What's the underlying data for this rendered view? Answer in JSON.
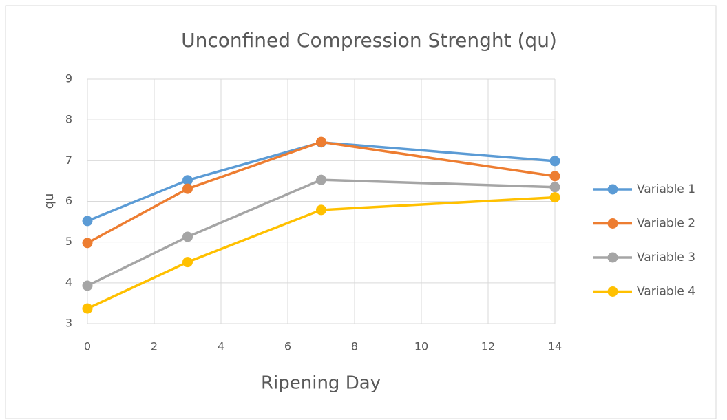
{
  "chart_data": {
    "type": "line",
    "title": "Unconfined Compression Strenght (qu)",
    "x_label": "Ripening Day",
    "y_label": "qu",
    "x": [
      0,
      3,
      7,
      14
    ],
    "series": [
      {
        "name": "Variable 1",
        "color": "#5b9bd5",
        "values": [
          5.52,
          6.52,
          7.45,
          6.99
        ]
      },
      {
        "name": "Variable 2",
        "color": "#ed7d31",
        "values": [
          4.98,
          6.31,
          7.46,
          6.62
        ]
      },
      {
        "name": "Variable 3",
        "color": "#a5a5a5",
        "values": [
          3.93,
          5.13,
          6.53,
          6.35
        ]
      },
      {
        "name": "Variable 4",
        "color": "#ffc000",
        "values": [
          3.37,
          4.51,
          5.79,
          6.1
        ]
      }
    ],
    "xlim": [
      0,
      14
    ],
    "xticks": [
      0,
      2,
      4,
      6,
      8,
      10,
      12,
      14
    ],
    "ylim": [
      3,
      9
    ],
    "yticks": [
      3,
      4,
      5,
      6,
      7,
      8,
      9
    ],
    "grid": true,
    "legend": "right"
  }
}
